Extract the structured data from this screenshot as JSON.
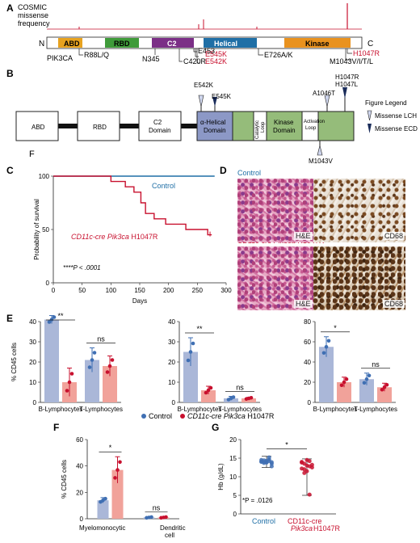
{
  "panels": {
    "A": "A",
    "B": "B",
    "C": "C",
    "D": "D",
    "E": "E",
    "F": "F",
    "G": "G",
    "F_stray": "F"
  },
  "panel_a": {
    "cosmic_label_1": "COSMIC",
    "cosmic_label_2": "missense",
    "cosmic_label_3": "frequency",
    "n_term": "N",
    "c_term": "C",
    "domains": {
      "abd": "ABD",
      "rbd": "RBD",
      "c2": "C2",
      "helical": "Helical",
      "kinase": "Kinase"
    },
    "gene": "PIK3CA",
    "mutations_below": [
      "R88L/Q",
      "N345",
      "C420R",
      "E453",
      "E726A/K"
    ],
    "mutations_red": [
      "E545K",
      "E542K",
      "H1047R"
    ],
    "m1043": "M1043V/I/T/L",
    "colors": {
      "abd": "#e7a21f",
      "rbd": "#3f9b3a",
      "c2": "#7b2f86",
      "helical": "#1f6fa6",
      "kinase": "#e9921f",
      "red": "#c8102e"
    }
  },
  "panel_b": {
    "domains": {
      "abd": "ABD",
      "rbd": "RBD",
      "c2_1": "C2",
      "c2_2": "Domain",
      "ah_1": "α-Helical",
      "ah_2": "Domain",
      "cat_1": "Catalytic",
      "cat_2": "Loop",
      "kin_1": "Kinase",
      "kin_2": "Domain",
      "act_1": "Activation",
      "act_2": "Loop"
    },
    "mutations": {
      "e542k": "E542K",
      "e545k": "E545K",
      "a1046t": "A1046T",
      "h1047r": "H1047R",
      "h1047l": "H1047L",
      "m1043v": "M1043V"
    },
    "legend_title": "Figure Legend",
    "legend": [
      {
        "label": "Missense LCH"
      },
      {
        "label": "Missense ECD"
      }
    ]
  },
  "panel_c": {
    "chart_data": {
      "type": "line",
      "xlabel": "Days",
      "ylabel": "Probability of survival",
      "xlim": [
        0,
        300
      ],
      "ylim": [
        0,
        100
      ],
      "xticks": [
        "0",
        "50",
        "100",
        "150",
        "200",
        "250",
        "300"
      ],
      "yticks": [
        "0",
        "50",
        "100"
      ],
      "series": [
        {
          "name": "Control",
          "x": [
            0,
            280
          ],
          "y": [
            100,
            100
          ]
        },
        {
          "name": "CD11c-cre Pik3ca H1047R",
          "x": [
            0,
            100,
            100,
            125,
            125,
            140,
            140,
            152,
            152,
            160,
            160,
            175,
            175,
            195,
            195,
            230,
            230,
            268,
            268,
            275
          ],
          "y": [
            100,
            100,
            95,
            95,
            90,
            90,
            85,
            85,
            75,
            75,
            65,
            65,
            60,
            60,
            55,
            55,
            50,
            50,
            45,
            45
          ]
        }
      ],
      "annotation": "****P < .0001"
    },
    "control_label": "Control",
    "mut_label_1": "CD11c-cre Pik3ca",
    "mut_label_2": " H1047R",
    "pvalue": "****P < .0001"
  },
  "panel_d": {
    "control_label": "Control",
    "mut_label_1": "CD11c-cre Pik3ca",
    "mut_label_2": " H1047R",
    "he": "H&E",
    "cd68": "CD68"
  },
  "panel_e": {
    "ylabel": "% CD45 cells",
    "chart_data": [
      {
        "type": "bar",
        "categories": [
          "B-Lymphocytes",
          "T-Lymphocytes"
        ],
        "ylim": [
          0,
          40
        ],
        "yticks": [
          "0",
          "10",
          "20",
          "30",
          "40"
        ],
        "series": [
          {
            "name": "Control",
            "values": [
              41,
              21
            ],
            "err": [
              2,
              6
            ]
          },
          {
            "name": "CD11c-cre Pik3ca H1047R",
            "values": [
              10,
              18
            ],
            "err": [
              7,
              5
            ]
          }
        ],
        "sig": [
          "**",
          "ns"
        ]
      },
      {
        "type": "bar",
        "categories": [
          "B-Lymphocytes",
          "T-Lymphocytes"
        ],
        "ylim": [
          0,
          40
        ],
        "yticks": [
          "0",
          "10",
          "20",
          "30",
          "40"
        ],
        "series": [
          {
            "name": "Control",
            "values": [
              25,
              2
            ],
            "err": [
              7,
              1
            ]
          },
          {
            "name": "CD11c-cre Pik3ca H1047R",
            "values": [
              6,
              2
            ],
            "err": [
              2,
              0.5
            ]
          }
        ],
        "sig": [
          "**",
          "ns"
        ]
      },
      {
        "type": "bar",
        "categories": [
          "B-Lymphocytes",
          "T-Lymphocytes"
        ],
        "ylim": [
          0,
          80
        ],
        "yticks": [
          "0",
          "20",
          "40",
          "60",
          "80"
        ],
        "series": [
          {
            "name": "Control",
            "values": [
              55,
              23
            ],
            "err": [
              10,
              6
            ]
          },
          {
            "name": "CD11c-cre Pik3ca H1047R",
            "values": [
              20,
              15
            ],
            "err": [
              5,
              4
            ]
          }
        ],
        "sig": [
          "*",
          "ns"
        ]
      }
    ],
    "legend_control": "Control",
    "legend_mut_1": "CD11c-cre Pik3ca",
    "legend_mut_2": " H1047R"
  },
  "panel_f": {
    "ylabel": "% CD45 cells",
    "chart_data": {
      "type": "bar",
      "categories": [
        "Myelomonocytic",
        "Dendritic cell"
      ],
      "ylim": [
        0,
        60
      ],
      "yticks": [
        "0",
        "20",
        "40",
        "60"
      ],
      "series": [
        {
          "name": "Control",
          "values": [
            14,
            1
          ],
          "err": [
            2,
            0.5
          ]
        },
        {
          "name": "CD11c-cre Pik3ca H1047R",
          "values": [
            37,
            1
          ],
          "err": [
            10,
            0.5
          ]
        }
      ],
      "sig": [
        "*",
        "ns"
      ]
    },
    "cat1": "Myelomonocytic",
    "cat2a": "Dendritic",
    "cat2b": "cell"
  },
  "panel_g": {
    "ylabel": "Hb (g/dL)",
    "chart_data": {
      "type": "scatter",
      "categories": [
        "Control",
        "CD11c-cre Pik3ca H1047R"
      ],
      "ylim": [
        0,
        20
      ],
      "yticks": [
        "0",
        "5",
        "10",
        "15",
        "20"
      ],
      "series": [
        {
          "name": "Control",
          "values": [
            14.5,
            14,
            13.8,
            14.2,
            13.9,
            14.1,
            13.7,
            14.3,
            14.6,
            13.5,
            14,
            14.4,
            13.9,
            15.2,
            12.8
          ],
          "min": 12.5,
          "max": 15.5
        },
        {
          "name": "CD11c-cre Pik3ca H1047R",
          "values": [
            14,
            13.5,
            13,
            12.8,
            12.5,
            13.8,
            12,
            11.5,
            14.2,
            13.2,
            12.2,
            11,
            14.5,
            5.2
          ],
          "min": 5,
          "max": 14.8
        }
      ],
      "sig": "*"
    },
    "pvalue": "*P = .0126",
    "cat1": "Control",
    "cat2a": "CD11c-cre",
    "cat2b": "Pik3ca",
    "cat2c": " H1047R"
  },
  "colors": {
    "control": "#3f6fb3",
    "control_fill": "#aab7d8",
    "mut": "#c8102e",
    "mut_fill": "#f1a29a",
    "blue_line": "#1f6fa6"
  }
}
